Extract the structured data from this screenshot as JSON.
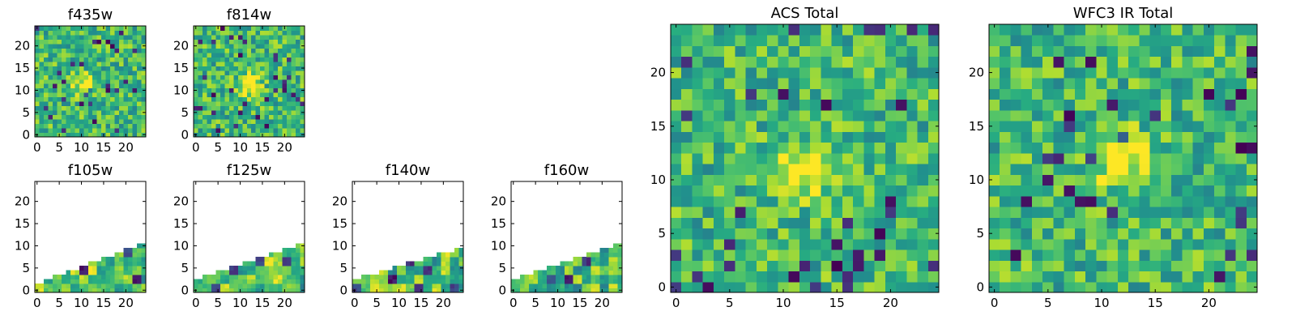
{
  "chart_data": [
    {
      "type": "heatmap",
      "title": "f435w",
      "xlim": [
        -0.5,
        24.5
      ],
      "ylim": [
        -0.5,
        24.5
      ],
      "xticks": [
        0,
        5,
        10,
        15,
        20
      ],
      "yticks": [
        0,
        5,
        10,
        15,
        20
      ],
      "grid_size": [
        25,
        25
      ],
      "coverage": "full",
      "colormap": "viridis",
      "texture": "noise",
      "source_center": [
        11,
        11
      ],
      "seed": 11
    },
    {
      "type": "heatmap",
      "title": "f814w",
      "xlim": [
        -0.5,
        24.5
      ],
      "ylim": [
        -0.5,
        24.5
      ],
      "xticks": [
        0,
        5,
        10,
        15,
        20
      ],
      "yticks": [
        0,
        5,
        10,
        15,
        20
      ],
      "grid_size": [
        25,
        25
      ],
      "coverage": "full",
      "colormap": "viridis",
      "texture": "noise",
      "source_center": [
        12,
        11
      ],
      "seed": 23
    },
    {
      "type": "heatmap",
      "title": "f105w",
      "xlim": [
        -0.5,
        24.5
      ],
      "ylim": [
        -0.5,
        24.5
      ],
      "xticks": [
        0,
        5,
        10,
        15,
        20
      ],
      "yticks": [
        0,
        5,
        10,
        15,
        20
      ],
      "grid_size": [
        25,
        25
      ],
      "coverage": "wedge",
      "edge_y_at_x0": 1.5,
      "edge_y_at_x24": 10.5,
      "colormap": "viridis",
      "texture": "patches",
      "patch_size": 2,
      "seed": 37
    },
    {
      "type": "heatmap",
      "title": "f125w",
      "xlim": [
        -0.5,
        24.5
      ],
      "ylim": [
        -0.5,
        24.5
      ],
      "xticks": [
        0,
        5,
        10,
        15,
        20
      ],
      "yticks": [
        0,
        5,
        10,
        15,
        20
      ],
      "grid_size": [
        25,
        25
      ],
      "coverage": "wedge",
      "edge_y_at_x0": 2.5,
      "edge_y_at_x24": 10.5,
      "colormap": "viridis",
      "texture": "patches",
      "patch_size": 2,
      "seed": 41
    },
    {
      "type": "heatmap",
      "title": "f140w",
      "xlim": [
        -0.5,
        24.5
      ],
      "ylim": [
        -0.5,
        24.5
      ],
      "xticks": [
        0,
        5,
        10,
        15,
        20
      ],
      "yticks": [
        0,
        5,
        10,
        15,
        20
      ],
      "grid_size": [
        25,
        25
      ],
      "coverage": "wedge",
      "edge_y_at_x0": 2.5,
      "edge_y_at_x24": 9.5,
      "colormap": "viridis",
      "texture": "patches",
      "patch_size": 2,
      "seed": 53
    },
    {
      "type": "heatmap",
      "title": "f160w",
      "xlim": [
        -0.5,
        24.5
      ],
      "ylim": [
        -0.5,
        24.5
      ],
      "xticks": [
        0,
        5,
        10,
        15,
        20
      ],
      "yticks": [
        0,
        5,
        10,
        15,
        20
      ],
      "grid_size": [
        25,
        25
      ],
      "coverage": "wedge",
      "edge_y_at_x0": 2.5,
      "edge_y_at_x24": 10.5,
      "colormap": "viridis",
      "texture": "patches",
      "patch_size": 2,
      "seed": 67
    },
    {
      "type": "heatmap",
      "title": "ACS Total",
      "xlim": [
        -0.5,
        24.5
      ],
      "ylim": [
        -0.5,
        24.5
      ],
      "xticks": [
        0,
        5,
        10,
        15,
        20
      ],
      "yticks": [
        0,
        5,
        10,
        15,
        20
      ],
      "grid_size": [
        25,
        25
      ],
      "coverage": "full",
      "colormap": "viridis",
      "texture": "noise",
      "source_center": [
        12,
        11
      ],
      "seed": 79
    },
    {
      "type": "heatmap",
      "title": "WFC3 IR Total",
      "xlim": [
        -0.5,
        24.5
      ],
      "ylim": [
        -0.5,
        24.5
      ],
      "xticks": [
        0,
        5,
        10,
        15,
        20
      ],
      "yticks": [
        0,
        5,
        10,
        15,
        20
      ],
      "grid_size": [
        25,
        25
      ],
      "coverage": "full",
      "colormap": "viridis",
      "texture": "noise",
      "source_center": [
        12,
        12
      ],
      "seed": 97
    }
  ]
}
